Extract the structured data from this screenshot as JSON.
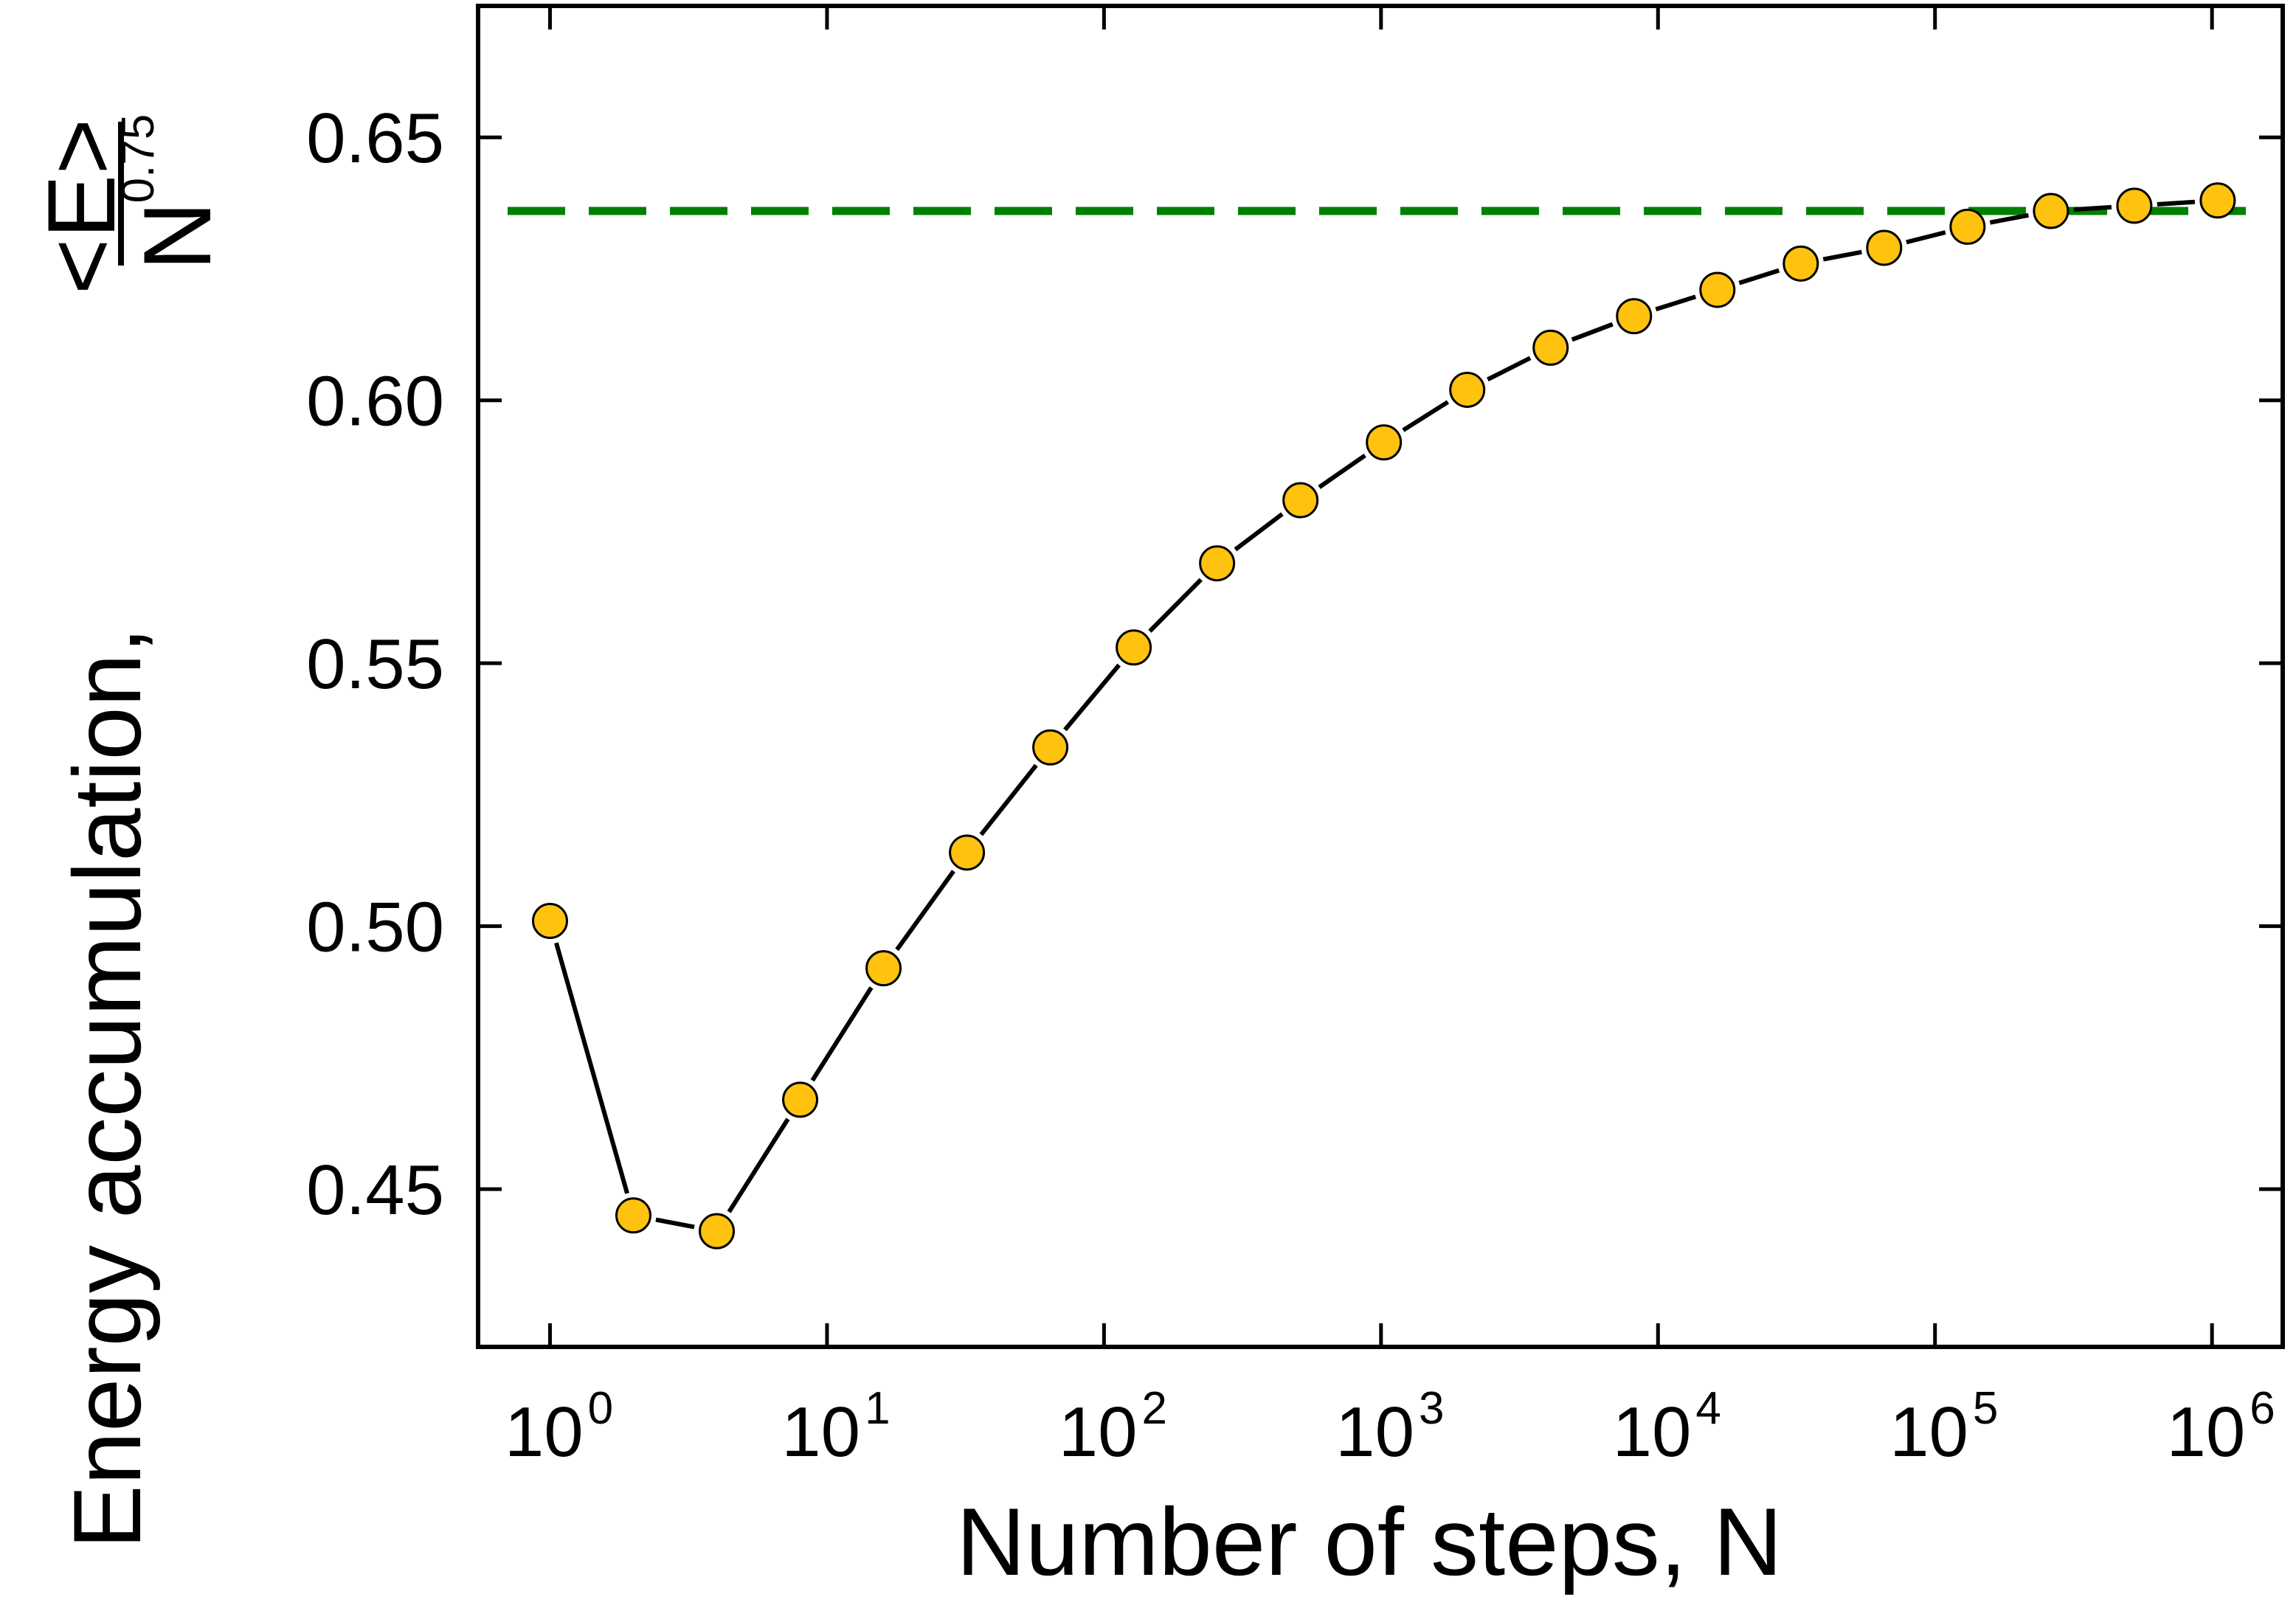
{
  "chart_data": {
    "type": "line",
    "xscale": "log",
    "xlabel": "Number of steps, N",
    "ylabel": {
      "main": "Energy accumulation,",
      "numerator": "<E>",
      "denominator": "N",
      "exponent": "0.75"
    },
    "xlim": [
      0.55,
      1800000
    ],
    "ylim": [
      0.42,
      0.675
    ],
    "xticks": [
      {
        "value": 1,
        "base": "10",
        "exp": "0"
      },
      {
        "value": 10,
        "base": "10",
        "exp": "1"
      },
      {
        "value": 100,
        "base": "10",
        "exp": "2"
      },
      {
        "value": 1000,
        "base": "10",
        "exp": "3"
      },
      {
        "value": 10000,
        "base": "10",
        "exp": "4"
      },
      {
        "value": 100000,
        "base": "10",
        "exp": "5"
      },
      {
        "value": 1000000,
        "base": "10",
        "exp": "6"
      }
    ],
    "yticks": [
      {
        "value": 0.45,
        "label": "0.45"
      },
      {
        "value": 0.5,
        "label": "0.50"
      },
      {
        "value": 0.55,
        "label": "0.55"
      },
      {
        "value": 0.6,
        "label": "0.60"
      },
      {
        "value": 0.65,
        "label": "0.65"
      }
    ],
    "series": [
      {
        "x": [
          1,
          2,
          4,
          8,
          16,
          32,
          64,
          128,
          256,
          512,
          1024,
          2048,
          4096,
          8192,
          16384,
          32768,
          65536,
          131072,
          262144,
          524288,
          1048576
        ],
        "y": [
          0.501,
          0.445,
          0.442,
          0.467,
          0.492,
          0.514,
          0.534,
          0.553,
          0.569,
          0.581,
          0.592,
          0.602,
          0.61,
          0.616,
          0.621,
          0.626,
          0.629,
          0.633,
          0.636,
          0.637,
          0.638
        ],
        "marker_color": "#FFC20E",
        "marker_edge": "#000000",
        "line_color": "#000000"
      }
    ],
    "reference_line": {
      "y": 0.636,
      "style": "dashed",
      "color": "#008000"
    },
    "grid": false,
    "legend": "none"
  }
}
